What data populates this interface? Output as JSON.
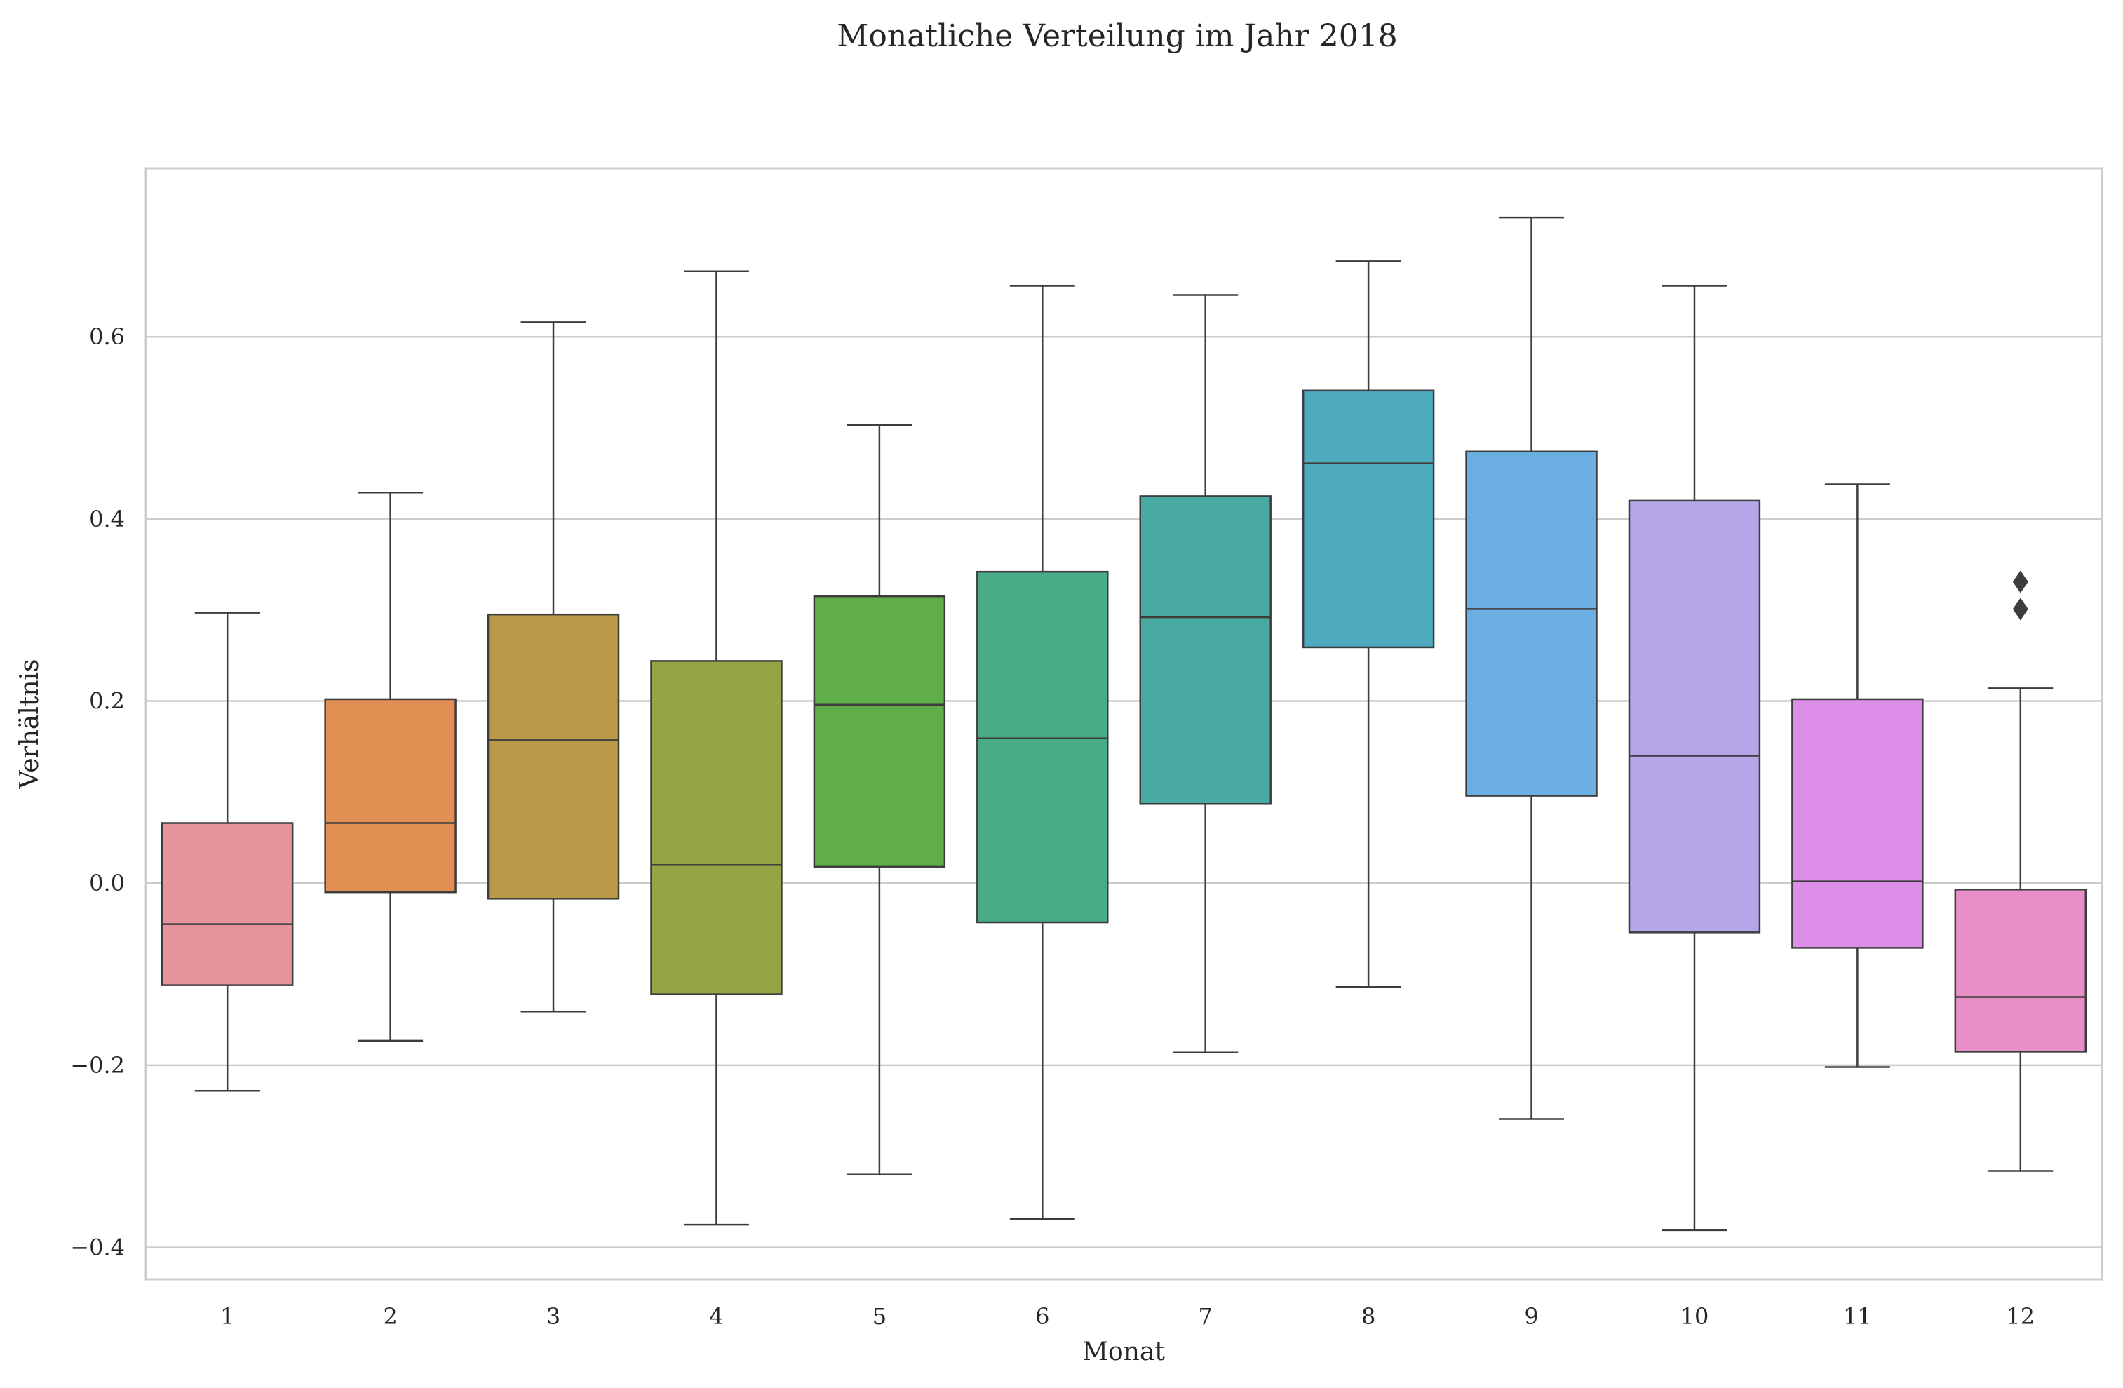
{
  "chart_data": {
    "type": "box",
    "title": "Monatliche Verteilung im Jahr 2018",
    "xlabel": "Monat",
    "ylabel": "Verhältnis",
    "ylim": [
      -0.435,
      0.785
    ],
    "yticks": [
      -0.4,
      -0.2,
      0.0,
      0.2,
      0.4,
      0.6
    ],
    "ytick_labels": [
      "−0.4",
      "−0.2",
      "0.0",
      "0.2",
      "0.4",
      "0.6"
    ],
    "grid": "horizontal",
    "categories": [
      "1",
      "2",
      "3",
      "4",
      "5",
      "6",
      "7",
      "8",
      "9",
      "10",
      "11",
      "12"
    ],
    "boxes": [
      {
        "month": "1",
        "whislo": -0.228,
        "q1": -0.112,
        "med": -0.045,
        "q3": 0.066,
        "whishi": 0.297,
        "fliers": [],
        "color": "#e8949f"
      },
      {
        "month": "2",
        "whislo": -0.173,
        "q1": -0.01,
        "med": 0.066,
        "q3": 0.202,
        "whishi": 0.429,
        "fliers": [],
        "color": "#e18f53"
      },
      {
        "month": "3",
        "whislo": -0.141,
        "q1": -0.017,
        "med": 0.157,
        "q3": 0.295,
        "whishi": 0.616,
        "fliers": [],
        "color": "#b89a48"
      },
      {
        "month": "4",
        "whislo": -0.375,
        "q1": -0.122,
        "med": 0.02,
        "q3": 0.244,
        "whishi": 0.672,
        "fliers": [],
        "color": "#96a446"
      },
      {
        "month": "5",
        "whislo": -0.32,
        "q1": 0.018,
        "med": 0.196,
        "q3": 0.315,
        "whishi": 0.503,
        "fliers": [],
        "color": "#5fae48"
      },
      {
        "month": "6",
        "whislo": -0.369,
        "q1": -0.043,
        "med": 0.159,
        "q3": 0.342,
        "whishi": 0.656,
        "fliers": [],
        "color": "#48ad86"
      },
      {
        "month": "7",
        "whislo": -0.186,
        "q1": 0.087,
        "med": 0.292,
        "q3": 0.425,
        "whishi": 0.646,
        "fliers": [],
        "color": "#48aaa0"
      },
      {
        "month": "8",
        "whislo": -0.114,
        "q1": 0.259,
        "med": 0.461,
        "q3": 0.541,
        "whishi": 0.683,
        "fliers": [],
        "color": "#4eaabf"
      },
      {
        "month": "9",
        "whislo": -0.259,
        "q1": 0.096,
        "med": 0.301,
        "q3": 0.474,
        "whishi": 0.731,
        "fliers": [],
        "color": "#6aaee2"
      },
      {
        "month": "10",
        "whislo": -0.381,
        "q1": -0.054,
        "med": 0.14,
        "q3": 0.42,
        "whishi": 0.656,
        "fliers": [],
        "color": "#b5a6ea"
      },
      {
        "month": "11",
        "whislo": -0.202,
        "q1": -0.071,
        "med": 0.002,
        "q3": 0.202,
        "whishi": 0.438,
        "fliers": [],
        "color": "#dd8ee8"
      },
      {
        "month": "12",
        "whislo": -0.316,
        "q1": -0.185,
        "med": -0.125,
        "q3": -0.007,
        "whishi": 0.214,
        "fliers": [
          0.301,
          0.331
        ],
        "color": "#e88fc7"
      }
    ]
  }
}
